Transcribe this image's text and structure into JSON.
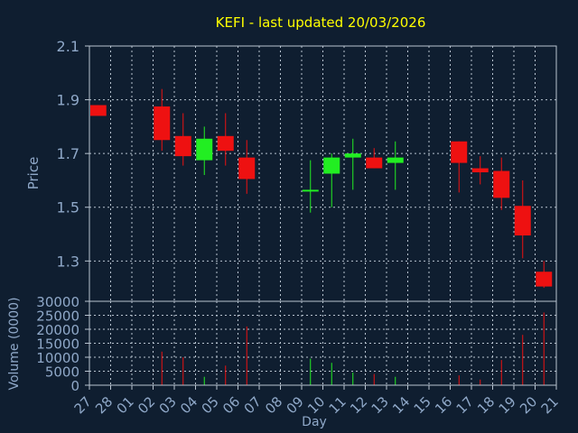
{
  "chart_data": {
    "type": "candlestick",
    "title": "KEFI - last updated 20/03/2026",
    "xlabel": "Day",
    "ylabel": "Price",
    "volume_label": "Volume (0000)",
    "ylim": [
      1.15,
      2.1
    ],
    "volume_ylim": [
      0,
      30000
    ],
    "price_ticks": [
      "2.1",
      "1.9",
      "1.7",
      "1.5",
      "1.3"
    ],
    "volume_ticks": [
      "30000",
      "25000",
      "20000",
      "15000",
      "10000",
      "5000",
      "0"
    ],
    "grid": true,
    "colors": {
      "background": "#0f1e30",
      "up": "#22ee22",
      "down": "#ee1111",
      "title": "#ffff00",
      "text": "#8fa8c8",
      "grid": "#b8c4d0"
    },
    "x_labels": [
      "27",
      "28",
      "01",
      "02",
      "03",
      "04",
      "05",
      "06",
      "07",
      "08",
      "09",
      "10",
      "11",
      "12",
      "13",
      "14",
      "15",
      "16",
      "17",
      "18",
      "19",
      "20",
      "21"
    ],
    "candles": [
      {
        "day": "27",
        "open": 1.88,
        "close": 1.84,
        "high": 1.88,
        "low": 1.84,
        "volume": 0
      },
      {
        "day": "02",
        "open": 1.875,
        "close": 1.75,
        "high": 1.94,
        "low": 1.71,
        "volume": 12000
      },
      {
        "day": "03",
        "open": 1.765,
        "close": 1.69,
        "high": 1.85,
        "low": 1.655,
        "volume": 10000
      },
      {
        "day": "04",
        "open": 1.675,
        "close": 1.755,
        "high": 1.8,
        "low": 1.62,
        "volume": 3000
      },
      {
        "day": "05",
        "open": 1.765,
        "close": 1.71,
        "high": 1.85,
        "low": 1.655,
        "volume": 7000
      },
      {
        "day": "06",
        "open": 1.685,
        "close": 1.605,
        "high": 1.75,
        "low": 1.55,
        "volume": 21000
      },
      {
        "day": "09",
        "open": 1.56,
        "close": 1.565,
        "high": 1.675,
        "low": 1.48,
        "volume": 9500
      },
      {
        "day": "10",
        "open": 1.625,
        "close": 1.685,
        "high": 1.7,
        "low": 1.5,
        "volume": 8000
      },
      {
        "day": "11",
        "open": 1.685,
        "close": 1.7,
        "high": 1.755,
        "low": 1.565,
        "volume": 4500
      },
      {
        "day": "12",
        "open": 1.685,
        "close": 1.645,
        "high": 1.72,
        "low": 1.645,
        "volume": 4000
      },
      {
        "day": "13",
        "open": 1.665,
        "close": 1.685,
        "high": 1.745,
        "low": 1.565,
        "volume": 3000
      },
      {
        "day": "16",
        "open": 1.745,
        "close": 1.665,
        "high": 1.745,
        "low": 1.555,
        "volume": 3500
      },
      {
        "day": "17",
        "open": 1.645,
        "close": 1.63,
        "high": 1.69,
        "low": 1.585,
        "volume": 2000
      },
      {
        "day": "18",
        "open": 1.635,
        "close": 1.535,
        "high": 1.685,
        "low": 1.49,
        "volume": 9000
      },
      {
        "day": "19",
        "open": 1.505,
        "close": 1.395,
        "high": 1.6,
        "low": 1.31,
        "volume": 18000
      },
      {
        "day": "20",
        "open": 1.26,
        "close": 1.205,
        "high": 1.3,
        "low": 1.2,
        "volume": 26000
      }
    ]
  }
}
